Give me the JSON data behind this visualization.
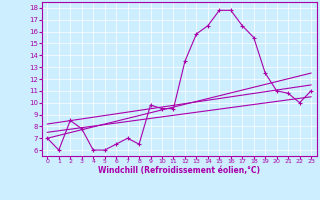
{
  "xlabel": "Windchill (Refroidissement éolien,°C)",
  "background_color": "#cceeff",
  "line_color": "#aa00aa",
  "xlim": [
    -0.5,
    23.5
  ],
  "ylim": [
    5.5,
    18.5
  ],
  "yticks": [
    6,
    7,
    8,
    9,
    10,
    11,
    12,
    13,
    14,
    15,
    16,
    17,
    18
  ],
  "xticks": [
    0,
    1,
    2,
    3,
    4,
    5,
    6,
    7,
    8,
    9,
    10,
    11,
    12,
    13,
    14,
    15,
    16,
    17,
    18,
    19,
    20,
    21,
    22,
    23
  ],
  "curve1_x": [
    0,
    1,
    2,
    3,
    4,
    5,
    6,
    7,
    8,
    9,
    10,
    11,
    12,
    13,
    14,
    15,
    16,
    17,
    18,
    19,
    20,
    21,
    22,
    23
  ],
  "curve1_y": [
    7.0,
    6.0,
    8.5,
    7.8,
    6.0,
    6.0,
    6.5,
    7.0,
    6.5,
    9.8,
    9.5,
    9.5,
    13.5,
    15.8,
    16.5,
    17.8,
    17.8,
    16.5,
    15.5,
    12.5,
    11.0,
    10.8,
    10.0,
    11.0
  ],
  "curve2_x": [
    0,
    23
  ],
  "curve2_y": [
    7.5,
    10.5
  ],
  "curve3_x": [
    0,
    23
  ],
  "curve3_y": [
    8.2,
    11.5
  ],
  "curve4_x": [
    0,
    23
  ],
  "curve4_y": [
    7.0,
    12.5
  ]
}
